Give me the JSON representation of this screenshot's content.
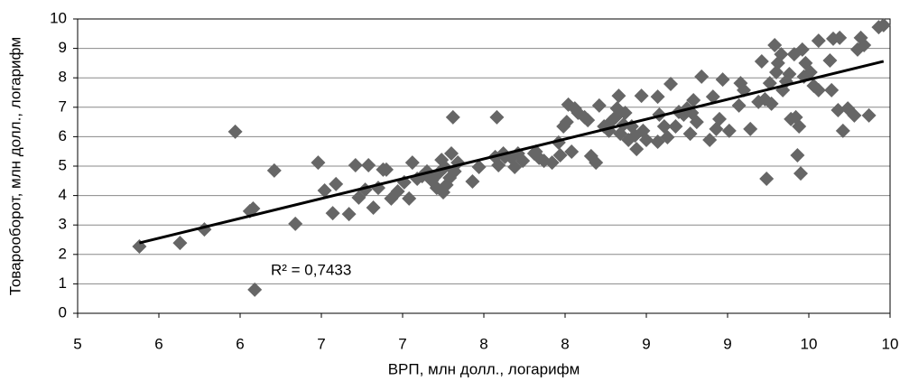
{
  "chart_data": {
    "type": "scatter",
    "xlabel": "ВРП, млн долл., логарифм",
    "ylabel": "Товарооборот, млн долл., логарифм",
    "annotation": "R² = 0,7433",
    "color": "#666666",
    "trend_color": "#000000",
    "grid": true,
    "xlim": [
      5,
      10
    ],
    "ylim": [
      0,
      10
    ],
    "xticks": [
      5,
      {
        "value": 5.5,
        "label": "6"
      },
      6,
      {
        "value": 6.5,
        "label": "7"
      },
      7,
      {
        "value": 7.5,
        "label": "8"
      },
      8,
      {
        "value": 8.5,
        "label": "9"
      },
      9,
      {
        "value": 9.5,
        "label": "10"
      },
      10
    ],
    "yticks": [
      0,
      1,
      2,
      3,
      4,
      5,
      6,
      7,
      8,
      9,
      10
    ],
    "x": [
      5.38,
      5.63,
      5.78,
      5.97,
      6.06,
      6.08,
      6.09,
      6.21,
      6.34,
      6.48,
      6.52,
      6.57,
      6.59,
      6.67,
      6.71,
      6.73,
      6.77,
      6.79,
      6.82,
      6.85,
      6.88,
      6.9,
      6.93,
      6.97,
      7.01,
      7.04,
      7.06,
      7.09,
      7.12,
      7.15,
      7.18,
      7.21,
      7.22,
      7.24,
      7.25,
      7.26,
      7.29,
      7.3,
      7.31,
      7.27,
      7.32,
      7.34,
      7.43,
      7.47,
      7.57,
      7.58,
      7.59,
      7.62,
      7.63,
      7.67,
      7.69,
      7.71,
      7.74,
      7.81,
      7.82,
      7.84,
      7.87,
      7.92,
      7.96,
      7.97,
      7.99,
      8.01,
      8.02,
      8.04,
      8.06,
      8.08,
      8.12,
      8.14,
      8.16,
      8.19,
      8.21,
      8.24,
      8.27,
      8.28,
      8.31,
      8.32,
      8.33,
      8.34,
      8.36,
      8.37,
      8.39,
      8.41,
      8.43,
      8.44,
      8.47,
      8.48,
      8.5,
      8.57,
      8.57,
      8.58,
      8.61,
      8.63,
      8.65,
      8.68,
      8.7,
      8.73,
      8.75,
      8.77,
      8.78,
      8.79,
      8.81,
      8.84,
      8.89,
      8.91,
      8.93,
      8.95,
      8.97,
      9.01,
      9.07,
      9.08,
      9.1,
      9.14,
      9.19,
      9.21,
      9.23,
      9.24,
      9.26,
      9.27,
      9.29,
      9.3,
      9.31,
      9.33,
      9.34,
      9.36,
      9.38,
      9.39,
      9.41,
      9.42,
      9.43,
      9.44,
      9.45,
      9.46,
      9.47,
      9.48,
      9.51,
      9.53,
      9.56,
      9.56,
      9.63,
      9.64,
      9.65,
      9.68,
      9.69,
      9.71,
      9.74,
      9.78,
      9.8,
      9.82,
      9.84,
      9.87,
      9.93,
      9.96
    ],
    "values": [
      2.27,
      2.39,
      2.85,
      6.17,
      3.47,
      3.56,
      0.8,
      4.85,
      3.04,
      5.12,
      4.17,
      3.4,
      4.39,
      3.37,
      5.03,
      3.93,
      4.2,
      5.03,
      3.59,
      4.26,
      4.88,
      4.88,
      3.9,
      4.14,
      4.45,
      3.9,
      5.12,
      4.57,
      4.66,
      4.82,
      4.51,
      4.26,
      4.75,
      5.21,
      4.11,
      4.97,
      4.6,
      5.43,
      6.66,
      4.36,
      4.82,
      5.12,
      4.48,
      4.97,
      5.31,
      6.66,
      5.03,
      5.43,
      5.31,
      5.28,
      4.97,
      5.43,
      5.18,
      5.43,
      5.49,
      5.28,
      5.18,
      5.12,
      5.8,
      5.37,
      6.35,
      6.5,
      7.09,
      5.49,
      6.96,
      6.81,
      6.66,
      6.56,
      5.34,
      5.12,
      7.06,
      6.35,
      6.2,
      6.5,
      6.66,
      6.96,
      7.39,
      6.1,
      6.41,
      6.81,
      5.89,
      6.35,
      6.04,
      5.58,
      7.39,
      6.2,
      5.89,
      7.36,
      5.83,
      6.75,
      6.35,
      5.98,
      7.79,
      6.35,
      6.84,
      6.75,
      6.96,
      6.1,
      6.81,
      7.24,
      6.5,
      8.04,
      5.89,
      7.36,
      6.26,
      6.6,
      7.94,
      6.2,
      7.06,
      7.82,
      7.58,
      6.26,
      7.18,
      8.56,
      7.27,
      4.57,
      7.82,
      7.12,
      9.11,
      8.19,
      8.5,
      8.8,
      7.58,
      7.88,
      8.13,
      6.6,
      8.8,
      6.66,
      5.37,
      6.35,
      4.75,
      8.96,
      8.04,
      8.5,
      8.19,
      7.73,
      7.58,
      9.26,
      8.59,
      7.58,
      9.33,
      6.9,
      9.36,
      6.2,
      6.96,
      6.72,
      8.96,
      9.36,
      9.11,
      6.72,
      9.72,
      9.79
    ],
    "trend_line": {
      "x": [
        5.38,
        9.96
      ],
      "values": [
        2.39,
        8.56
      ]
    }
  }
}
